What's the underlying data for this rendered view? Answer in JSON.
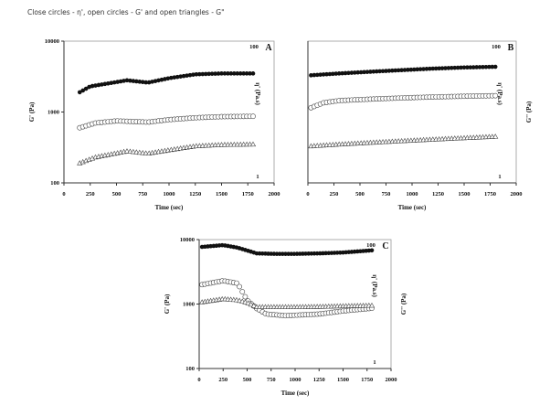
{
  "caption": "Close circles - η', open circles - G' and open triangles - G\"",
  "chart_data": [
    {
      "type": "scatter",
      "panel": "A",
      "xlabel": "Time (sec)",
      "ylabel": "G' (Pa)",
      "y2label": "η' (Pa.s)",
      "y3label": "",
      "xlim": [
        0,
        2000
      ],
      "ylim": [
        100,
        10000
      ],
      "y2lim": [
        1,
        100
      ],
      "yscale": "log",
      "xticks": [
        "0",
        "250",
        "500",
        "750",
        "1000",
        "1250",
        "1500",
        "1750",
        "2000"
      ],
      "yticks": [
        "100",
        "1000",
        "10000"
      ],
      "show_yticks": true,
      "y2ticks": [
        "1",
        "100"
      ],
      "series": [
        {
          "marker": "filled-circle",
          "x": [
            150,
            250,
            400,
            600,
            800,
            1000,
            1250,
            1500,
            1800
          ],
          "y": [
            1900,
            2300,
            2500,
            2800,
            2600,
            3000,
            3400,
            3500,
            3500
          ]
        },
        {
          "marker": "open-circle",
          "x": [
            150,
            300,
            500,
            800,
            1000,
            1250,
            1500,
            1800
          ],
          "y": [
            600,
            700,
            750,
            720,
            780,
            830,
            860,
            870
          ]
        },
        {
          "marker": "open-triangle",
          "x": [
            150,
            300,
            600,
            800,
            1000,
            1250,
            1500,
            1800
          ],
          "y": [
            190,
            230,
            280,
            260,
            290,
            330,
            345,
            350
          ]
        }
      ]
    },
    {
      "type": "scatter",
      "panel": "B",
      "xlabel": "Time (sec)",
      "ylabel": "",
      "y2label": "η' (Pa.s)",
      "y3label": "G'' (Pa)",
      "xlim": [
        0,
        2000
      ],
      "ylim": [
        100,
        10000
      ],
      "y2lim": [
        1,
        100
      ],
      "yscale": "log",
      "xticks": [
        "0",
        "250",
        "500",
        "750",
        "1000",
        "1250",
        "1500",
        "1750",
        "2000"
      ],
      "yticks": [],
      "show_yticks": false,
      "y2ticks": [
        "1",
        "100"
      ],
      "series": [
        {
          "marker": "filled-circle",
          "x": [
            30,
            300,
            600,
            900,
            1200,
            1500,
            1800
          ],
          "y": [
            3300,
            3500,
            3700,
            3900,
            4100,
            4250,
            4350
          ]
        },
        {
          "marker": "open-circle",
          "x": [
            30,
            150,
            300,
            600,
            900,
            1200,
            1500,
            1800
          ],
          "y": [
            1150,
            1350,
            1450,
            1520,
            1580,
            1630,
            1670,
            1700
          ]
        },
        {
          "marker": "open-triangle",
          "x": [
            30,
            300,
            600,
            900,
            1200,
            1500,
            1800
          ],
          "y": [
            330,
            350,
            370,
            390,
            410,
            430,
            450
          ]
        }
      ]
    },
    {
      "type": "scatter",
      "panel": "C",
      "xlabel": "Time (sec)",
      "ylabel": "G' (Pa)",
      "y2label": "η' (Pa.s)",
      "y3label": "G'' (Pa)",
      "xlim": [
        0,
        2000
      ],
      "ylim": [
        100,
        10000
      ],
      "y2lim": [
        1,
        100
      ],
      "yscale": "log",
      "xticks": [
        "0",
        "250",
        "500",
        "750",
        "1000",
        "1250",
        "1500",
        "1750",
        "2000"
      ],
      "yticks": [
        "100",
        "1000",
        "10000"
      ],
      "show_yticks": true,
      "y2ticks": [
        "1",
        "100"
      ],
      "series": [
        {
          "marker": "filled-circle",
          "x": [
            30,
            250,
            400,
            600,
            800,
            1000,
            1250,
            1500,
            1800
          ],
          "y": [
            7700,
            8200,
            7500,
            6100,
            6000,
            6000,
            6100,
            6300,
            6800
          ]
        },
        {
          "marker": "open-circle",
          "x": [
            30,
            250,
            400,
            500,
            600,
            700,
            900,
            1250,
            1500,
            1800
          ],
          "y": [
            2000,
            2300,
            2100,
            1150,
            850,
            700,
            660,
            700,
            780,
            860
          ]
        },
        {
          "marker": "open-triangle",
          "x": [
            30,
            250,
            400,
            500,
            600,
            800,
            1000,
            1250,
            1500,
            1800
          ],
          "y": [
            1070,
            1200,
            1150,
            1050,
            900,
            900,
            900,
            910,
            930,
            950
          ]
        }
      ]
    }
  ]
}
